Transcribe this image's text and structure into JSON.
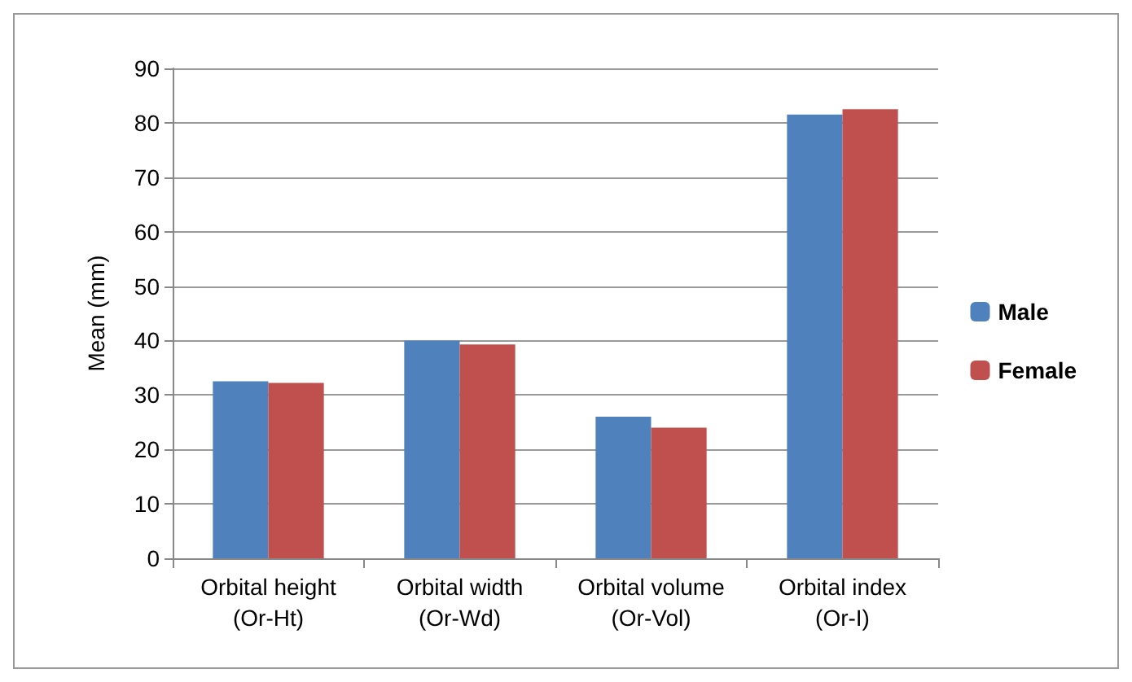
{
  "chart_data": {
    "type": "bar",
    "ylabel": "Mean (mm)",
    "categories": [
      "Orbital height\n(Or-Ht)",
      "Orbital width\n(Or-Wd)",
      "Orbital volume\n(Or-Vol)",
      "Orbital index\n(Or-I)"
    ],
    "series": [
      {
        "name": "Male",
        "color": "#4f81bd",
        "values": [
          32.5,
          40.0,
          26.0,
          81.5
        ]
      },
      {
        "name": "Female",
        "color": "#c0504d",
        "values": [
          32.2,
          39.3,
          24.0,
          82.5
        ]
      }
    ],
    "ylim": [
      0,
      90
    ],
    "yticks": [
      0,
      10,
      20,
      30,
      40,
      50,
      60,
      70,
      80,
      90
    ],
    "grid": "y",
    "legend": "right"
  }
}
